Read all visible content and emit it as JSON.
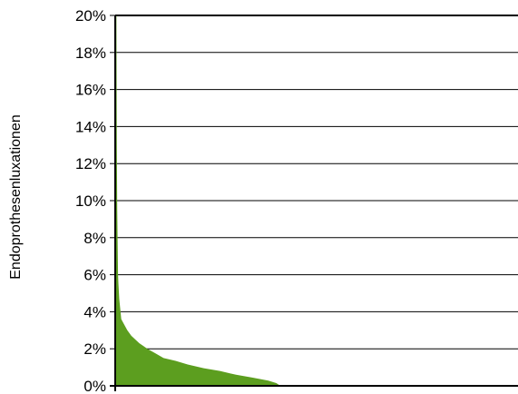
{
  "chart_data": {
    "type": "area",
    "title": "",
    "xlabel": "",
    "ylabel": "Endoprothesenluxationen",
    "ylim": [
      0,
      20
    ],
    "y_ticks": [
      "0%",
      "2%",
      "4%",
      "6%",
      "8%",
      "10%",
      "12%",
      "14%",
      "16%",
      "18%",
      "20%"
    ],
    "grid": true,
    "legend": "none",
    "colors": {
      "fill": "#5c9e1f",
      "grid": "#000000",
      "axis": "#000000"
    },
    "x_range": [
      0,
      100
    ],
    "series": [
      {
        "x": [
          0,
          0.3,
          0.4,
          0.5,
          0.7,
          0.8,
          1.0,
          1.5,
          2,
          3,
          4,
          6,
          8,
          10,
          12,
          15,
          18,
          22,
          26,
          30,
          34,
          38,
          40,
          41
        ],
        "values": [
          20,
          20,
          13,
          9.5,
          6,
          5.5,
          4.7,
          3.6,
          3.4,
          3.0,
          2.7,
          2.3,
          2.0,
          1.75,
          1.5,
          1.35,
          1.15,
          0.95,
          0.8,
          0.6,
          0.45,
          0.28,
          0.15,
          0
        ]
      }
    ]
  }
}
